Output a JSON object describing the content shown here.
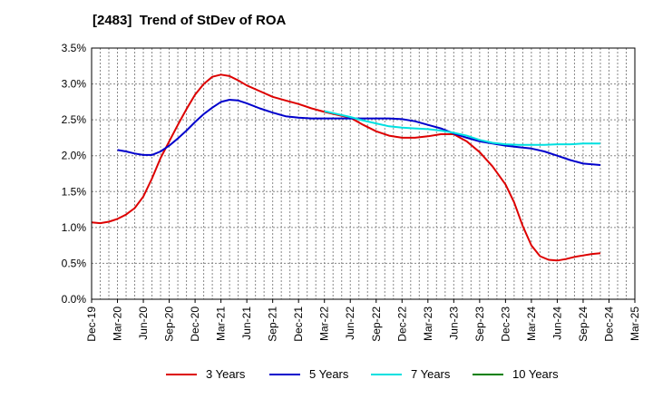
{
  "chart_data": {
    "type": "line",
    "title": "[2483]  Trend of StDev of ROA",
    "xlabel": "",
    "ylabel": "",
    "ylim": [
      0,
      3.5
    ],
    "y_ticks": [
      "0.0%",
      "0.5%",
      "1.0%",
      "1.5%",
      "2.0%",
      "2.5%",
      "3.0%",
      "3.5%"
    ],
    "categories": [
      "Dec-19",
      "Mar-20",
      "Jun-20",
      "Sep-20",
      "Dec-20",
      "Mar-21",
      "Jun-21",
      "Sep-21",
      "Dec-21",
      "Mar-22",
      "Jun-22",
      "Sep-22",
      "Dec-22",
      "Mar-23",
      "Jun-23",
      "Sep-23",
      "Dec-23",
      "Mar-24",
      "Jun-24",
      "Sep-24",
      "Dec-24",
      "Mar-25"
    ],
    "grid": true,
    "legend_position": "bottom",
    "series": [
      {
        "name": "3 Years",
        "color": "#dd0000",
        "points": [
          [
            0,
            1.07
          ],
          [
            0.333,
            1.06
          ],
          [
            0.667,
            1.08
          ],
          [
            1,
            1.12
          ],
          [
            1.333,
            1.18
          ],
          [
            1.667,
            1.27
          ],
          [
            2,
            1.43
          ],
          [
            2.333,
            1.68
          ],
          [
            2.667,
            1.97
          ],
          [
            3,
            2.2
          ],
          [
            3.333,
            2.43
          ],
          [
            3.667,
            2.65
          ],
          [
            4,
            2.85
          ],
          [
            4.333,
            3.0
          ],
          [
            4.667,
            3.1
          ],
          [
            5,
            3.13
          ],
          [
            5.333,
            3.11
          ],
          [
            5.667,
            3.05
          ],
          [
            6,
            2.98
          ],
          [
            6.5,
            2.9
          ],
          [
            7,
            2.82
          ],
          [
            7.5,
            2.77
          ],
          [
            8,
            2.72
          ],
          [
            8.5,
            2.66
          ],
          [
            9,
            2.61
          ],
          [
            9.5,
            2.57
          ],
          [
            10,
            2.53
          ],
          [
            10.5,
            2.43
          ],
          [
            11,
            2.34
          ],
          [
            11.5,
            2.28
          ],
          [
            12,
            2.25
          ],
          [
            12.5,
            2.25
          ],
          [
            13,
            2.27
          ],
          [
            13.5,
            2.3
          ],
          [
            14,
            2.3
          ],
          [
            14.5,
            2.2
          ],
          [
            15,
            2.05
          ],
          [
            15.5,
            1.85
          ],
          [
            16,
            1.6
          ],
          [
            16.333,
            1.35
          ],
          [
            16.667,
            1.02
          ],
          [
            17,
            0.75
          ],
          [
            17.333,
            0.6
          ],
          [
            17.667,
            0.55
          ],
          [
            18,
            0.54
          ],
          [
            18.333,
            0.56
          ],
          [
            18.667,
            0.59
          ],
          [
            19,
            0.61
          ],
          [
            19.333,
            0.63
          ],
          [
            19.667,
            0.64
          ]
        ]
      },
      {
        "name": "5 Years",
        "color": "#0000cc",
        "points": [
          [
            1,
            2.08
          ],
          [
            1.333,
            2.06
          ],
          [
            1.667,
            2.03
          ],
          [
            2,
            2.01
          ],
          [
            2.333,
            2.01
          ],
          [
            2.667,
            2.06
          ],
          [
            3,
            2.14
          ],
          [
            3.333,
            2.24
          ],
          [
            3.667,
            2.35
          ],
          [
            4,
            2.47
          ],
          [
            4.333,
            2.58
          ],
          [
            4.667,
            2.67
          ],
          [
            5,
            2.75
          ],
          [
            5.333,
            2.78
          ],
          [
            5.667,
            2.77
          ],
          [
            6,
            2.73
          ],
          [
            6.5,
            2.66
          ],
          [
            7,
            2.6
          ],
          [
            7.5,
            2.55
          ],
          [
            8,
            2.53
          ],
          [
            8.5,
            2.52
          ],
          [
            9,
            2.52
          ],
          [
            9.5,
            2.52
          ],
          [
            10,
            2.52
          ],
          [
            10.5,
            2.52
          ],
          [
            11,
            2.52
          ],
          [
            11.5,
            2.52
          ],
          [
            12,
            2.51
          ],
          [
            12.5,
            2.48
          ],
          [
            13,
            2.43
          ],
          [
            13.5,
            2.38
          ],
          [
            14,
            2.31
          ],
          [
            14.5,
            2.25
          ],
          [
            15,
            2.2
          ],
          [
            15.5,
            2.17
          ],
          [
            16,
            2.14
          ],
          [
            16.5,
            2.12
          ],
          [
            17,
            2.1
          ],
          [
            17.5,
            2.06
          ],
          [
            18,
            2.0
          ],
          [
            18.5,
            1.94
          ],
          [
            19,
            1.89
          ],
          [
            19.667,
            1.87
          ]
        ]
      },
      {
        "name": "7 Years",
        "color": "#00e0e0",
        "points": [
          [
            9,
            2.62
          ],
          [
            9.5,
            2.58
          ],
          [
            10,
            2.54
          ],
          [
            10.5,
            2.49
          ],
          [
            11,
            2.45
          ],
          [
            11.5,
            2.41
          ],
          [
            12,
            2.39
          ],
          [
            12.5,
            2.38
          ],
          [
            13,
            2.37
          ],
          [
            13.5,
            2.35
          ],
          [
            14,
            2.32
          ],
          [
            14.5,
            2.28
          ],
          [
            15,
            2.22
          ],
          [
            15.5,
            2.18
          ],
          [
            16,
            2.16
          ],
          [
            16.5,
            2.15
          ],
          [
            17,
            2.15
          ],
          [
            17.5,
            2.15
          ],
          [
            18,
            2.16
          ],
          [
            18.5,
            2.16
          ],
          [
            19,
            2.17
          ],
          [
            19.667,
            2.17
          ]
        ]
      },
      {
        "name": "10 Years",
        "color": "#008000",
        "points": []
      }
    ]
  }
}
